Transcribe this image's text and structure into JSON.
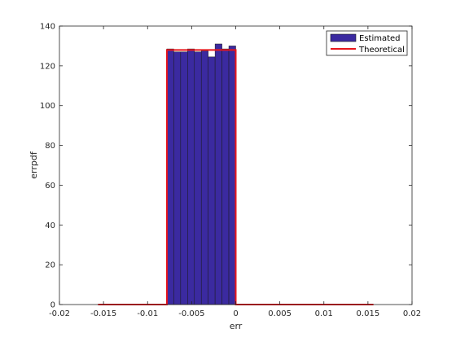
{
  "chart_data": {
    "type": "bar",
    "xlabel": "err",
    "ylabel": "errpdf",
    "xlim": [
      -0.02,
      0.02
    ],
    "ylim": [
      0,
      140
    ],
    "xticks": [
      -0.02,
      -0.015,
      -0.01,
      -0.005,
      0,
      0.005,
      0.01,
      0.015,
      0.02
    ],
    "xtick_labels": [
      "-0.02",
      "-0.015",
      "-0.01",
      "-0.005",
      "0",
      "0.005",
      "0.01",
      "0.015",
      "0.02"
    ],
    "yticks": [
      0,
      20,
      40,
      60,
      80,
      100,
      120,
      140
    ],
    "ytick_labels": [
      "0",
      "20",
      "40",
      "60",
      "80",
      "100",
      "120",
      "140"
    ],
    "grid": false,
    "legend_position": "top-right",
    "series": [
      {
        "name": "Estimated",
        "kind": "histogram",
        "color": "#3b2aa0",
        "edge_color": "#1a1a1a",
        "bin_edges": [
          -0.0078125,
          -0.00703125,
          -0.00625,
          -0.00546875,
          -0.0046875,
          -0.00390625,
          -0.003125,
          -0.00234375,
          -0.0015625,
          -0.00078125,
          0
        ],
        "values": [
          128.5,
          127,
          127,
          128.5,
          127,
          127.5,
          124.5,
          131,
          128.5,
          130
        ]
      },
      {
        "name": "Theoretical",
        "kind": "line",
        "color": "#e8161b",
        "x": [
          -0.015625,
          -0.0078125,
          -0.0078125,
          0,
          0,
          0.015625
        ],
        "y": [
          0,
          0,
          128,
          128,
          0,
          0
        ]
      }
    ]
  }
}
